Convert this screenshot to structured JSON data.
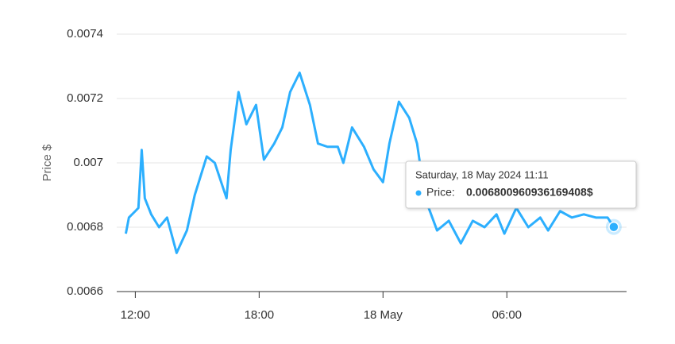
{
  "chart_data": {
    "type": "line",
    "y_label": "Price $",
    "x": [
      11.54,
      11.69,
      12,
      12.15,
      12.31,
      12.46,
      12.77,
      13.15,
      13.54,
      14,
      14.5,
      14.88,
      15.46,
      15.85,
      16.42,
      16.62,
      17,
      17.38,
      17.85,
      18.23,
      18.73,
      19.12,
      19.5,
      19.96,
      20.46,
      20.85,
      21.31,
      21.81,
      22.08,
      22.5,
      23.08,
      23.54,
      24,
      24.31,
      24.77,
      25.27,
      25.65,
      26.04,
      26.62,
      27.19,
      27.77,
      28.35,
      28.92,
      29.5,
      29.88,
      30.46,
      31.04,
      31.62,
      32,
      32.58,
      33.15,
      33.73,
      34.31,
      34.88,
      35.18
    ],
    "series": [
      {
        "color": "#2caffe",
        "values": [
          0.00678,
          0.00683,
          0.00685,
          0.00686,
          0.00704,
          0.00689,
          0.00684,
          0.0068,
          0.00683,
          0.00672,
          0.00679,
          0.0069,
          0.00702,
          0.007,
          0.00689,
          0.00704,
          0.00722,
          0.00712,
          0.00718,
          0.00701,
          0.00706,
          0.00711,
          0.00722,
          0.00728,
          0.00718,
          0.00706,
          0.00705,
          0.00705,
          0.007,
          0.00711,
          0.00705,
          0.00698,
          0.00694,
          0.00706,
          0.00719,
          0.00714,
          0.00706,
          0.00689,
          0.00679,
          0.00682,
          0.00675,
          0.00682,
          0.0068,
          0.00684,
          0.00678,
          0.00686,
          0.0068,
          0.00683,
          0.00679,
          0.00685,
          0.00683,
          0.00684,
          0.00683,
          0.00683,
          0.006800960936169408
        ]
      }
    ],
    "xlim": [
      11.1,
      35.8
    ],
    "xticks": [
      {
        "value": 12,
        "label": "12:00"
      },
      {
        "value": 18,
        "label": "18:00"
      },
      {
        "value": 24,
        "label": "18 May"
      },
      {
        "value": 30,
        "label": "06:00"
      }
    ],
    "ylim": [
      0.0066,
      0.0074
    ],
    "yticks": [
      0.0066,
      0.0068,
      0.007,
      0.0072,
      0.0074
    ],
    "grid": true,
    "tooltip": {
      "title": "Saturday, 18 May 2024 11:11",
      "label": "Price:",
      "value": 0.006800960936169408,
      "value_label": "0.006800960936169408$"
    }
  }
}
